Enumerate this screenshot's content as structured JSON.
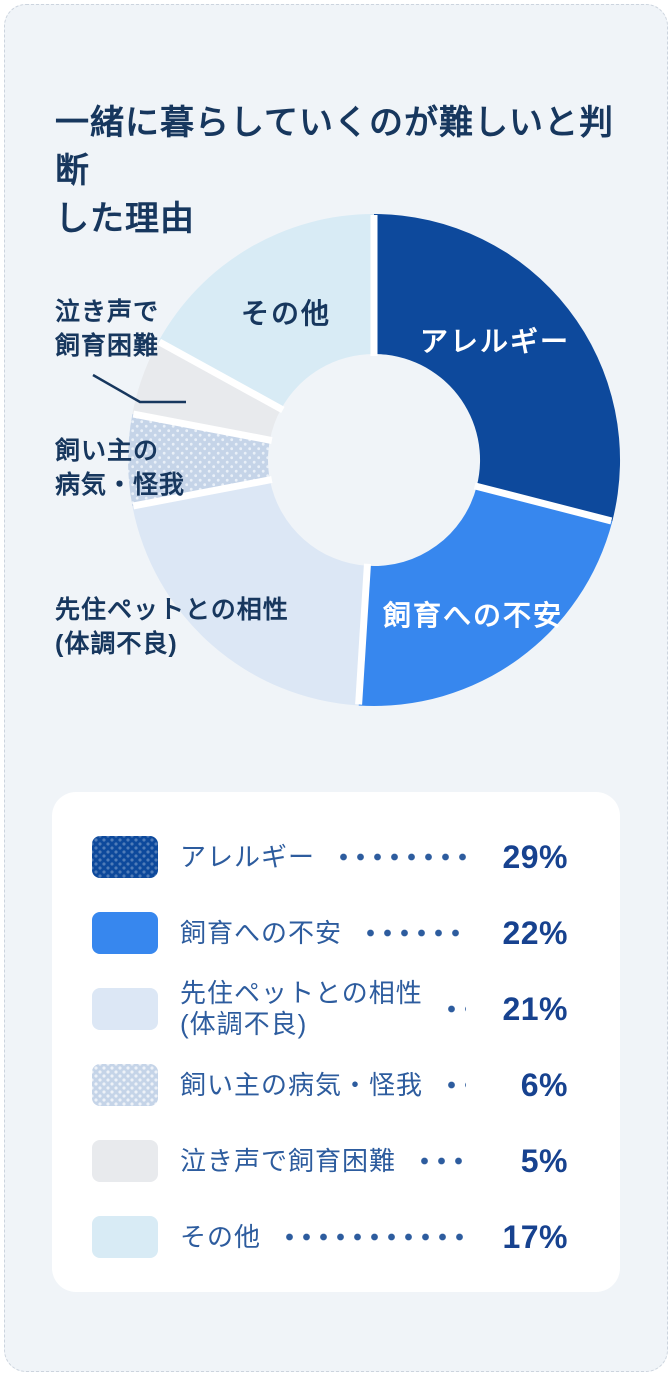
{
  "card": {
    "bg": "#f0f4f8"
  },
  "title_lines": [
    "一緒に暮らしていくのが難しいと判断",
    "した理由"
  ],
  "title_color": "#17375e",
  "chart_data": {
    "type": "pie",
    "subtype": "donut",
    "title": "一緒に暮らしていくのが難しいと判断した理由",
    "unit": "%",
    "start_angle_deg": 0,
    "clockwise": true,
    "donut_hole_ratio": 0.43,
    "gap_color": "#ffffff",
    "segments": [
      {
        "label": "アレルギー",
        "value": 29,
        "color": "#0d499c",
        "text_color": "#ffffff",
        "label_lines": [
          "アレルギー"
        ],
        "label_placement": "inside",
        "legend_texture": "dots"
      },
      {
        "label": "飼育への不安",
        "value": 22,
        "color": "#3787ee",
        "text_color": "#ffffff",
        "label_lines": [
          "飼育への不安"
        ],
        "label_placement": "inside"
      },
      {
        "label": "先住ペットとの相性 (体調不良)",
        "value": 21,
        "color": "#dce7f5",
        "text_color": "#17375e",
        "label_lines": [
          "先住ペットとの相性",
          "(体調不良)"
        ],
        "label_placement": "outside"
      },
      {
        "label": "飼い主の病気・怪我",
        "value": 6,
        "color": "#c5d4e8",
        "text_color": "#17375e",
        "label_lines": [
          "飼い主の",
          "病気・怪我"
        ],
        "label_placement": "outside",
        "legend_texture": "dots",
        "slice_texture": "dots"
      },
      {
        "label": "泣き声で飼育困難",
        "value": 5,
        "color": "#e8eaed",
        "text_color": "#17375e",
        "label_lines": [
          "泣き声で",
          "飼育困難"
        ],
        "label_placement": "outside",
        "leader_line": true
      },
      {
        "label": "その他",
        "value": 17,
        "color": "#d8ebf5",
        "text_color": "#17375e",
        "label_lines": [
          "その他"
        ],
        "label_placement": "inside"
      }
    ]
  },
  "legend": {
    "bg": "#ffffff",
    "rows": [
      {
        "label_lines": [
          "アレルギー"
        ],
        "value_text": "29%"
      },
      {
        "label_lines": [
          "飼育への不安"
        ],
        "value_text": "22%"
      },
      {
        "label_lines": [
          "先住ペットとの相性",
          "(体調不良)"
        ],
        "value_text": "21%"
      },
      {
        "label_lines": [
          "飼い主の病気・怪我"
        ],
        "value_text": "6%"
      },
      {
        "label_lines": [
          "泣き声で飼育困難"
        ],
        "value_text": "5%"
      },
      {
        "label_lines": [
          "その他"
        ],
        "value_text": "17%"
      }
    ]
  }
}
